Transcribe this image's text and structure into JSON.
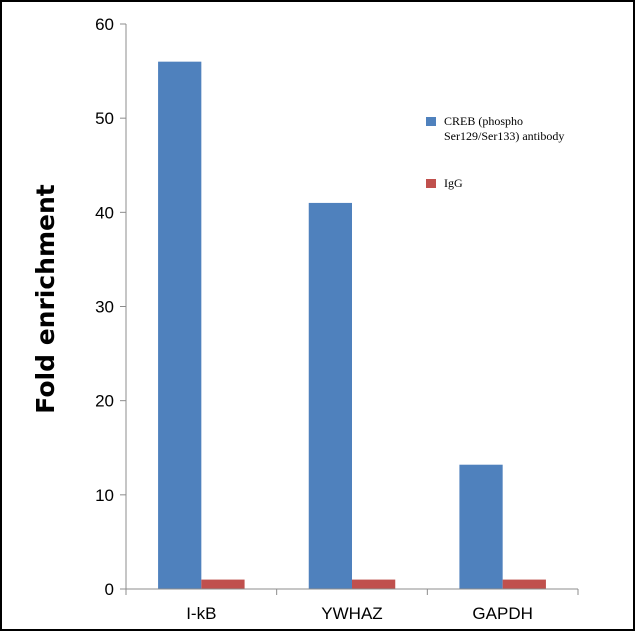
{
  "chart_data": {
    "type": "bar",
    "title": "",
    "xlabel": "",
    "ylabel": "Fold enrichment",
    "ylim": [
      0,
      60
    ],
    "yticks": [
      0,
      10,
      20,
      30,
      40,
      50,
      60
    ],
    "grid": false,
    "legend_position": "right",
    "categories": [
      "I-kB",
      "YWHAZ",
      "GAPDH"
    ],
    "series": [
      {
        "name": "CREB (phospho Ser129/Ser133) antibody",
        "legend_lines": [
          "CREB (phospho",
          "Ser129/Ser133) antibody"
        ],
        "color": "#4f81bd",
        "values": [
          56,
          41,
          13.2
        ]
      },
      {
        "name": "IgG",
        "legend_lines": [
          "IgG"
        ],
        "color": "#c0504d",
        "values": [
          1,
          1,
          1
        ]
      }
    ]
  }
}
